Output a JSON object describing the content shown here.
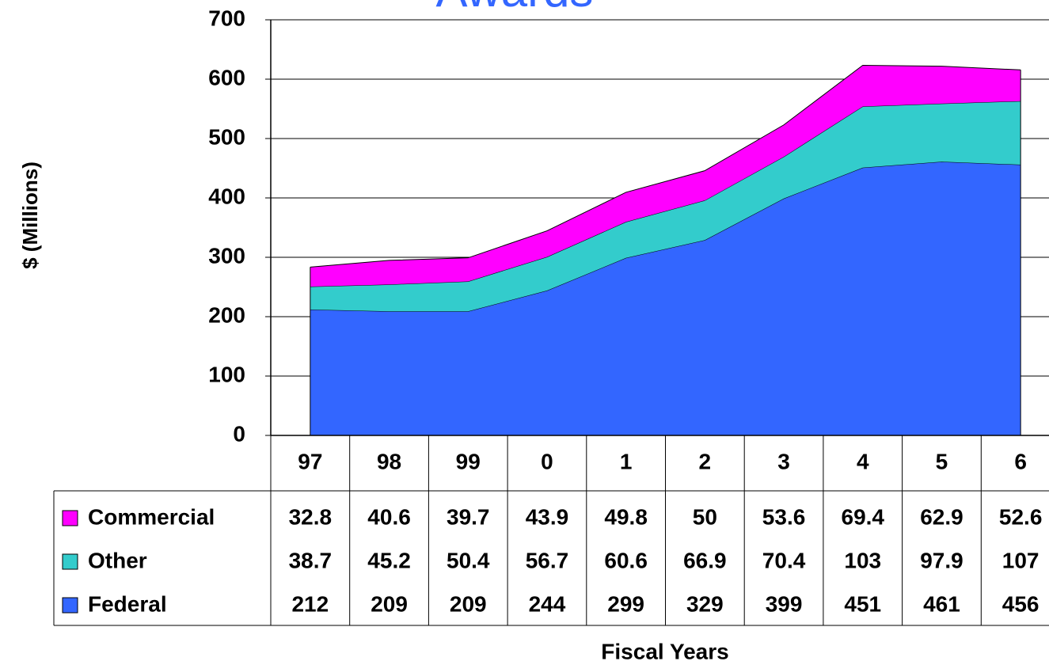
{
  "chart_data": {
    "type": "stacked_area",
    "title": "Awards",
    "y_label": "$ (Millions)",
    "x_label": "Fiscal Years",
    "categories": [
      "97",
      "98",
      "99",
      "0",
      "1",
      "2",
      "3",
      "4",
      "5",
      "6"
    ],
    "series": [
      {
        "name": "Commercial",
        "color": "#ff00ff",
        "values": [
          32.8,
          40.6,
          39.7,
          43.9,
          49.8,
          50,
          53.6,
          69.4,
          62.9,
          52.6
        ]
      },
      {
        "name": "Other",
        "color": "#33cccc",
        "values": [
          38.7,
          45.2,
          50.4,
          56.7,
          60.6,
          66.9,
          70.4,
          103,
          97.9,
          107
        ]
      },
      {
        "name": "Federal",
        "color": "#3366ff",
        "values": [
          212,
          209,
          209,
          244,
          299,
          329,
          399,
          451,
          461,
          456
        ]
      }
    ],
    "ylim": [
      0,
      700
    ],
    "yticks": [
      0,
      100,
      200,
      300,
      400,
      500,
      600,
      700
    ],
    "grid": true
  }
}
